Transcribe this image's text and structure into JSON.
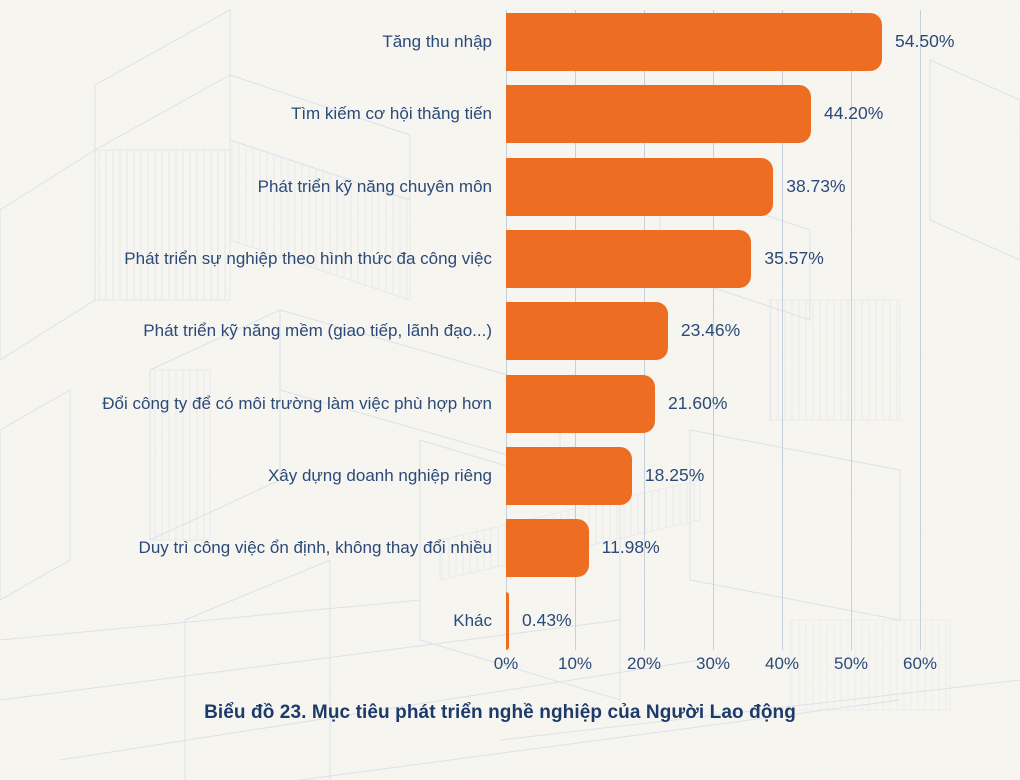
{
  "chart_data": {
    "type": "bar",
    "orientation": "horizontal",
    "caption": "Biểu đồ 23. Mục tiêu phát triển nghề nghiệp của Người Lao động",
    "categories": [
      "Tăng thu nhập",
      "Tìm kiếm cơ hội thăng tiến",
      "Phát triển kỹ năng chuyên môn",
      "Phát triển sự nghiệp theo hình thức đa công việc",
      "Phát triển kỹ năng mềm (giao tiếp, lãnh đạo...)",
      "Đổi công ty để có môi trường làm việc phù hợp hơn",
      "Xây dựng doanh nghiệp riêng",
      "Duy trì công việc ổn định, không thay đổi nhiều",
      "Khác"
    ],
    "values": [
      54.5,
      44.2,
      38.73,
      35.57,
      23.46,
      21.6,
      18.25,
      11.98,
      0.43
    ],
    "value_labels": [
      "54.50%",
      "44.20%",
      "38.73%",
      "35.57%",
      "23.46%",
      "21.60%",
      "18.25%",
      "11.98%",
      "0.43%"
    ],
    "x_tick_labels": [
      "0%",
      "10%",
      "20%",
      "30%",
      "40%",
      "50%",
      "60%"
    ],
    "x_tick_values": [
      0,
      10,
      20,
      30,
      40,
      50,
      60
    ],
    "xlim": [
      0,
      60
    ],
    "grid": true,
    "legend_position": "none",
    "colors": {
      "bar": "#ed6e22",
      "text": "#2b4a78",
      "caption": "#1c3b6b",
      "grid": "#c6cfdc",
      "background": "#f7f6f1",
      "sketch": "#d6dde9"
    }
  }
}
